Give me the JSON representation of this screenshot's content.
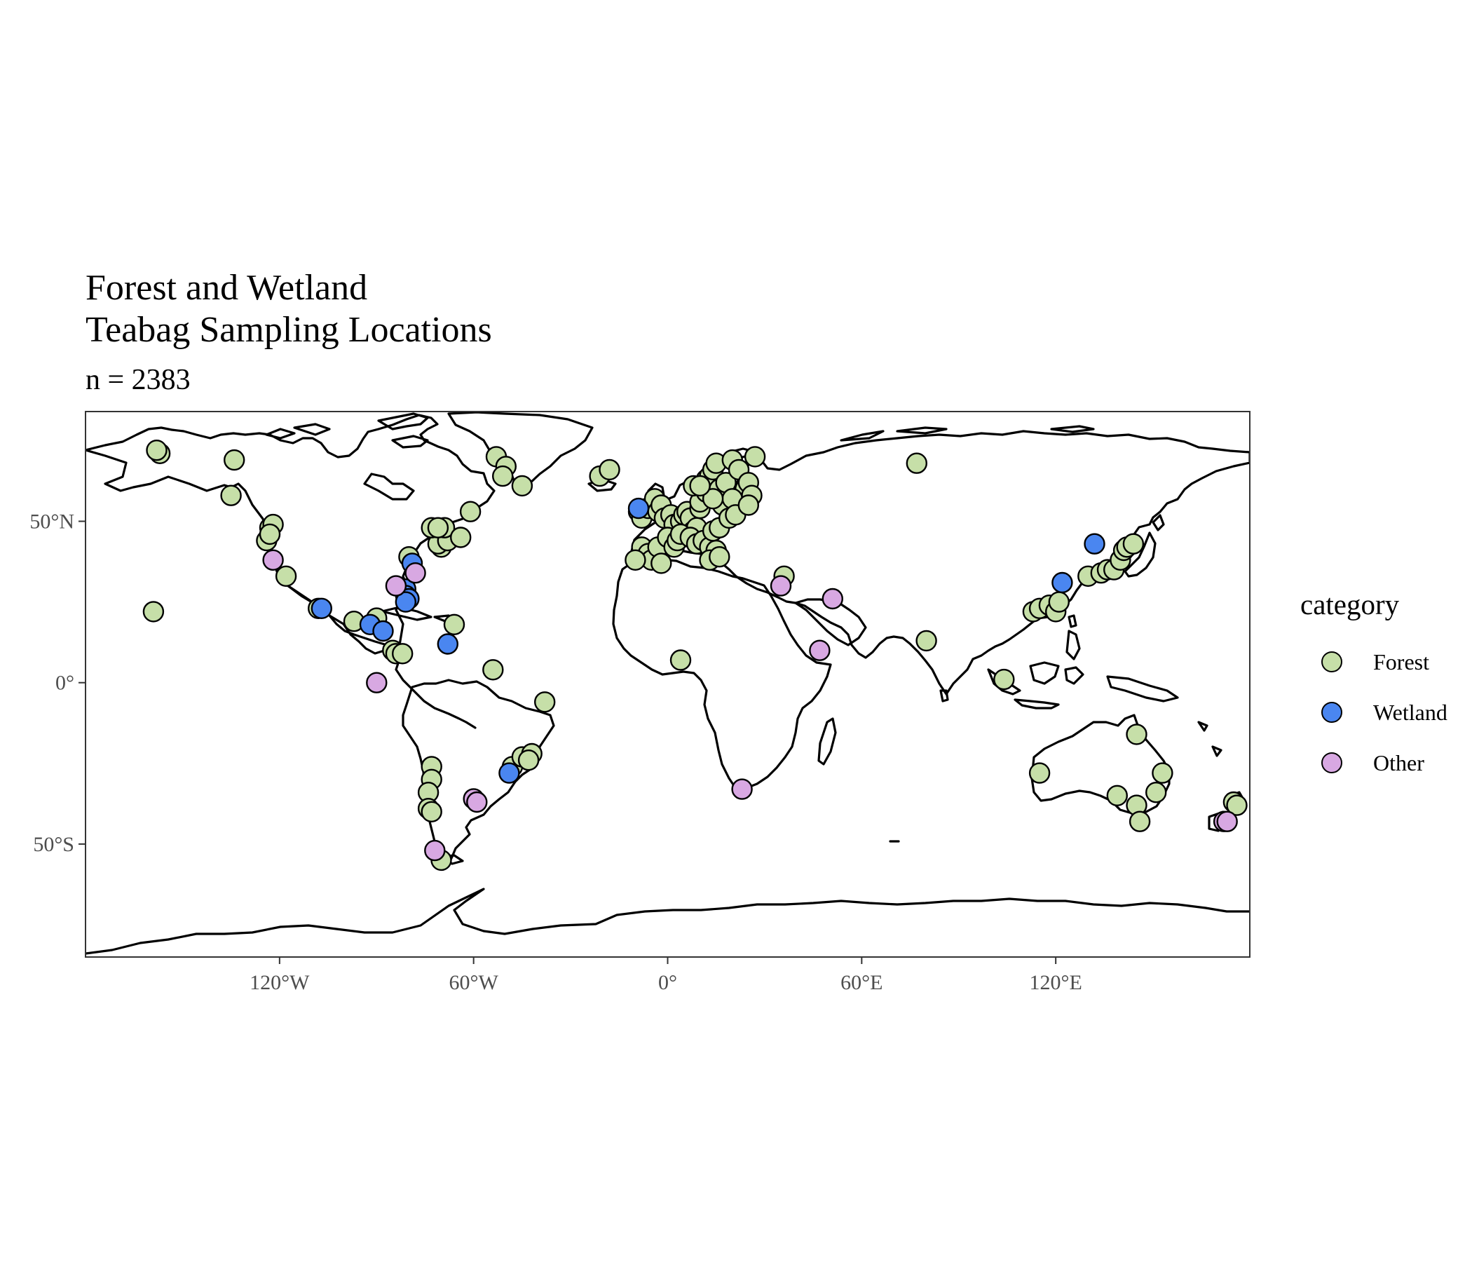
{
  "chart_data": {
    "type": "scatter",
    "projection": "equirectangular",
    "title_lines": [
      "Forest and Wetland",
      "Teabag Sampling Locations"
    ],
    "subtitle": "n = 2383",
    "xlim": [
      -180,
      180
    ],
    "ylim": [
      -85,
      84
    ],
    "x_ticks": [
      {
        "value": -120,
        "label": "120°W"
      },
      {
        "value": -60,
        "label": "60°W"
      },
      {
        "value": 0,
        "label": "0°"
      },
      {
        "value": 60,
        "label": "60°E"
      },
      {
        "value": 120,
        "label": "120°E"
      }
    ],
    "y_ticks": [
      {
        "value": 50,
        "label": "50°N"
      },
      {
        "value": 0,
        "label": "0°"
      },
      {
        "value": -50,
        "label": "50°S"
      }
    ],
    "grid": false,
    "legend": {
      "title": "category",
      "position": "right",
      "entries": [
        {
          "name": "Forest",
          "color": "#c6dfa8"
        },
        {
          "name": "Wetland",
          "color": "#4a86f0"
        },
        {
          "name": "Other",
          "color": "#d8a8e2"
        }
      ]
    },
    "series": [
      {
        "name": "Forest",
        "color": "#c6dfa8",
        "points": [
          [
            -157,
            71
          ],
          [
            -158,
            72
          ],
          [
            -134,
            69
          ],
          [
            -135,
            58
          ],
          [
            -123,
            48
          ],
          [
            -122,
            49
          ],
          [
            -124,
            44
          ],
          [
            -123,
            46
          ],
          [
            -118,
            33
          ],
          [
            -108,
            23
          ],
          [
            -97,
            19
          ],
          [
            -90,
            20
          ],
          [
            -85,
            10
          ],
          [
            -84,
            9
          ],
          [
            -82,
            9
          ],
          [
            -80,
            39
          ],
          [
            -70,
            42
          ],
          [
            -71,
            43
          ],
          [
            -68,
            44
          ],
          [
            -69,
            48
          ],
          [
            -73,
            48
          ],
          [
            -71,
            48
          ],
          [
            -64,
            45
          ],
          [
            -61,
            53
          ],
          [
            -66,
            18
          ],
          [
            -54,
            4
          ],
          [
            -38,
            -6
          ],
          [
            -53,
            70
          ],
          [
            -50,
            67
          ],
          [
            -51,
            64
          ],
          [
            -45,
            61
          ],
          [
            -21,
            64
          ],
          [
            -18,
            66
          ],
          [
            -73,
            -26
          ],
          [
            -73,
            -30
          ],
          [
            -74,
            -34
          ],
          [
            -74,
            -39
          ],
          [
            -73,
            -40
          ],
          [
            -70,
            -55
          ],
          [
            -48,
            -26
          ],
          [
            -45,
            -23
          ],
          [
            -42,
            -22
          ],
          [
            -43,
            -24
          ],
          [
            -159,
            22
          ],
          [
            4,
            7
          ],
          [
            36,
            33
          ],
          [
            77,
            68
          ],
          [
            80,
            13
          ],
          [
            104,
            1
          ],
          [
            113,
            22
          ],
          [
            115,
            23
          ],
          [
            118,
            24
          ],
          [
            120,
            22
          ],
          [
            121,
            25
          ],
          [
            130,
            33
          ],
          [
            134,
            34
          ],
          [
            136,
            35
          ],
          [
            138,
            35
          ],
          [
            140,
            38
          ],
          [
            141,
            41
          ],
          [
            142,
            42
          ],
          [
            144,
            43
          ],
          [
            145,
            -16
          ],
          [
            153,
            -28
          ],
          [
            151,
            -34
          ],
          [
            145,
            -38
          ],
          [
            146,
            -43
          ],
          [
            139,
            -35
          ],
          [
            115,
            -28
          ],
          [
            175,
            -37
          ],
          [
            176,
            -38
          ],
          [
            -9,
            53
          ],
          [
            -8,
            51
          ],
          [
            -6,
            54
          ],
          [
            -4,
            57
          ],
          [
            -3,
            53
          ],
          [
            -2,
            55
          ],
          [
            -1,
            51
          ],
          [
            1,
            52
          ],
          [
            2,
            49
          ],
          [
            4,
            50
          ],
          [
            5,
            52
          ],
          [
            6,
            53
          ],
          [
            7,
            51
          ],
          [
            8,
            47
          ],
          [
            9,
            48
          ],
          [
            10,
            54
          ],
          [
            10,
            56
          ],
          [
            11,
            61
          ],
          [
            12,
            63
          ],
          [
            12,
            59
          ],
          [
            13,
            64
          ],
          [
            14,
            66
          ],
          [
            15,
            68
          ],
          [
            16,
            60
          ],
          [
            17,
            55
          ],
          [
            18,
            62
          ],
          [
            20,
            69
          ],
          [
            22,
            66
          ],
          [
            24,
            60
          ],
          [
            25,
            62
          ],
          [
            26,
            58
          ],
          [
            20,
            57
          ],
          [
            14,
            57
          ],
          [
            -8,
            42
          ],
          [
            -6,
            40
          ],
          [
            -5,
            38
          ],
          [
            -3,
            42
          ],
          [
            -2,
            37
          ],
          [
            0,
            45
          ],
          [
            2,
            42
          ],
          [
            3,
            44
          ],
          [
            4,
            46
          ],
          [
            7,
            45
          ],
          [
            9,
            43
          ],
          [
            11,
            44
          ],
          [
            13,
            42
          ],
          [
            15,
            41
          ],
          [
            13,
            38
          ],
          [
            16,
            39
          ],
          [
            14,
            47
          ],
          [
            16,
            48
          ],
          [
            19,
            51
          ],
          [
            21,
            52
          ],
          [
            25,
            55
          ],
          [
            -10,
            38
          ],
          [
            8,
            61
          ],
          [
            10,
            61
          ],
          [
            27,
            70
          ]
        ]
      },
      {
        "name": "Wetland",
        "color": "#4a86f0",
        "points": [
          [
            -92,
            18
          ],
          [
            -88,
            16
          ],
          [
            -81,
            29
          ],
          [
            -81,
            27
          ],
          [
            -80,
            26
          ],
          [
            -81,
            25
          ],
          [
            -79,
            37
          ],
          [
            -68,
            12
          ],
          [
            -49,
            -28
          ],
          [
            -9,
            54
          ],
          [
            122,
            31
          ],
          [
            132,
            43
          ],
          [
            -107,
            23
          ]
        ]
      },
      {
        "name": "Other",
        "color": "#d8a8e2",
        "points": [
          [
            -122,
            38
          ],
          [
            -84,
            30
          ],
          [
            -78,
            34
          ],
          [
            -90,
            0
          ],
          [
            -72,
            -52
          ],
          [
            -60,
            -36
          ],
          [
            -59,
            -37
          ],
          [
            23,
            -33
          ],
          [
            35,
            30
          ],
          [
            51,
            26
          ],
          [
            47,
            10
          ],
          [
            172,
            -43
          ],
          [
            173,
            -43
          ]
        ]
      }
    ]
  }
}
